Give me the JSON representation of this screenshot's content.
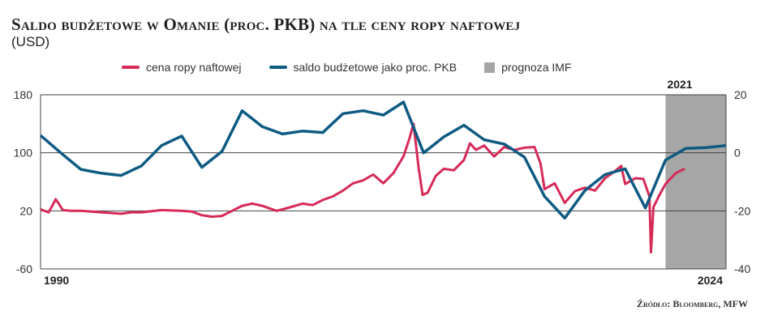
{
  "title": "Saldo budżetowe w Omanie (proc. PKB) na tle ceny ropy naftowej",
  "subtitle": "(USD)",
  "source": "Źródło: Bloomberg, MFW",
  "legend": {
    "oil": "cena ropy naftowej",
    "balance": "saldo budżetowe jako proc. PKB",
    "forecast": "prognoza IMF"
  },
  "colors": {
    "oil": "#d62a57",
    "balance": "#0f5a83",
    "forecast": "#a6a6a6",
    "grid": "#444444"
  },
  "chart_data": {
    "type": "line",
    "title": "Saldo budżetowe w Omanie (proc. PKB) na tle ceny ropy naftowej",
    "subtitle": "(USD)",
    "x_range": [
      1990,
      2024
    ],
    "x_labels": [
      "1990",
      "2024"
    ],
    "forecast_start": 2021,
    "forecast_label": "2021",
    "y_left": {
      "range": [
        -60,
        180
      ],
      "ticks": [
        "180",
        "100",
        "20",
        "-60"
      ]
    },
    "y_right": {
      "range": [
        -40,
        20
      ],
      "ticks": [
        "20",
        "0",
        "-20",
        "-40"
      ]
    },
    "grid": true,
    "legend_position": "top",
    "series": [
      {
        "name": "cena ropy naftowej",
        "axis": "left",
        "points": [
          [
            1990.0,
            22
          ],
          [
            1990.4,
            18
          ],
          [
            1990.6,
            28
          ],
          [
            1990.75,
            36
          ],
          [
            1990.9,
            30
          ],
          [
            1991.1,
            21
          ],
          [
            1991.5,
            20
          ],
          [
            1992.0,
            20
          ],
          [
            1993.0,
            18
          ],
          [
            1993.5,
            17
          ],
          [
            1994.0,
            16
          ],
          [
            1994.5,
            18
          ],
          [
            1995.0,
            18
          ],
          [
            1996.0,
            21
          ],
          [
            1997.0,
            20
          ],
          [
            1997.5,
            19
          ],
          [
            1998.0,
            14
          ],
          [
            1998.5,
            12
          ],
          [
            1999.0,
            13
          ],
          [
            1999.5,
            20
          ],
          [
            2000.0,
            27
          ],
          [
            2000.5,
            30
          ],
          [
            2001.0,
            27
          ],
          [
            2001.7,
            20
          ],
          [
            2002.0,
            22
          ],
          [
            2002.5,
            26
          ],
          [
            2003.0,
            30
          ],
          [
            2003.5,
            28
          ],
          [
            2004.0,
            35
          ],
          [
            2004.5,
            40
          ],
          [
            2005.0,
            48
          ],
          [
            2005.5,
            58
          ],
          [
            2006.0,
            62
          ],
          [
            2006.5,
            70
          ],
          [
            2007.0,
            58
          ],
          [
            2007.5,
            72
          ],
          [
            2008.0,
            95
          ],
          [
            2008.3,
            120
          ],
          [
            2008.5,
            140
          ],
          [
            2008.75,
            80
          ],
          [
            2008.95,
            42
          ],
          [
            2009.2,
            45
          ],
          [
            2009.6,
            68
          ],
          [
            2010.0,
            78
          ],
          [
            2010.5,
            76
          ],
          [
            2011.0,
            90
          ],
          [
            2011.3,
            113
          ],
          [
            2011.6,
            104
          ],
          [
            2012.0,
            110
          ],
          [
            2012.5,
            95
          ],
          [
            2013.0,
            108
          ],
          [
            2013.5,
            104
          ],
          [
            2014.0,
            107
          ],
          [
            2014.5,
            108
          ],
          [
            2014.8,
            85
          ],
          [
            2015.0,
            50
          ],
          [
            2015.5,
            58
          ],
          [
            2016.0,
            31
          ],
          [
            2016.5,
            47
          ],
          [
            2017.0,
            52
          ],
          [
            2017.5,
            48
          ],
          [
            2018.0,
            65
          ],
          [
            2018.5,
            75
          ],
          [
            2018.8,
            82
          ],
          [
            2019.0,
            57
          ],
          [
            2019.5,
            65
          ],
          [
            2019.9,
            64
          ],
          [
            2020.2,
            40
          ],
          [
            2020.28,
            -37
          ],
          [
            2020.4,
            25
          ],
          [
            2020.7,
            42
          ],
          [
            2021.0,
            57
          ],
          [
            2021.5,
            72
          ],
          [
            2021.95,
            78
          ]
        ]
      },
      {
        "name": "saldo budżetowe jako proc. PKB",
        "axis": "right",
        "points": [
          [
            1990,
            6
          ],
          [
            1991,
            0
          ],
          [
            1992,
            -5.7
          ],
          [
            1993,
            -7
          ],
          [
            1994,
            -7.8
          ],
          [
            1995,
            -4.5
          ],
          [
            1996,
            2.5
          ],
          [
            1997,
            5.8
          ],
          [
            1998,
            -5
          ],
          [
            1999,
            0.5
          ],
          [
            2000,
            14.5
          ],
          [
            2001,
            9
          ],
          [
            2002,
            6.5
          ],
          [
            2003,
            7.5
          ],
          [
            2004,
            7
          ],
          [
            2005,
            13.5
          ],
          [
            2006,
            14.5
          ],
          [
            2007,
            13
          ],
          [
            2008,
            17.5
          ],
          [
            2009,
            0
          ],
          [
            2010,
            5.5
          ],
          [
            2011,
            9.5
          ],
          [
            2012,
            4.5
          ],
          [
            2013,
            3
          ],
          [
            2014,
            -1.5
          ],
          [
            2015,
            -15
          ],
          [
            2016,
            -22.5
          ],
          [
            2017,
            -13
          ],
          [
            2018,
            -7.5
          ],
          [
            2019,
            -5.5
          ],
          [
            2020,
            -19
          ],
          [
            2021,
            -2.5
          ],
          [
            2022,
            1.5
          ],
          [
            2023,
            1.8
          ],
          [
            2024,
            2.5
          ]
        ]
      }
    ]
  }
}
